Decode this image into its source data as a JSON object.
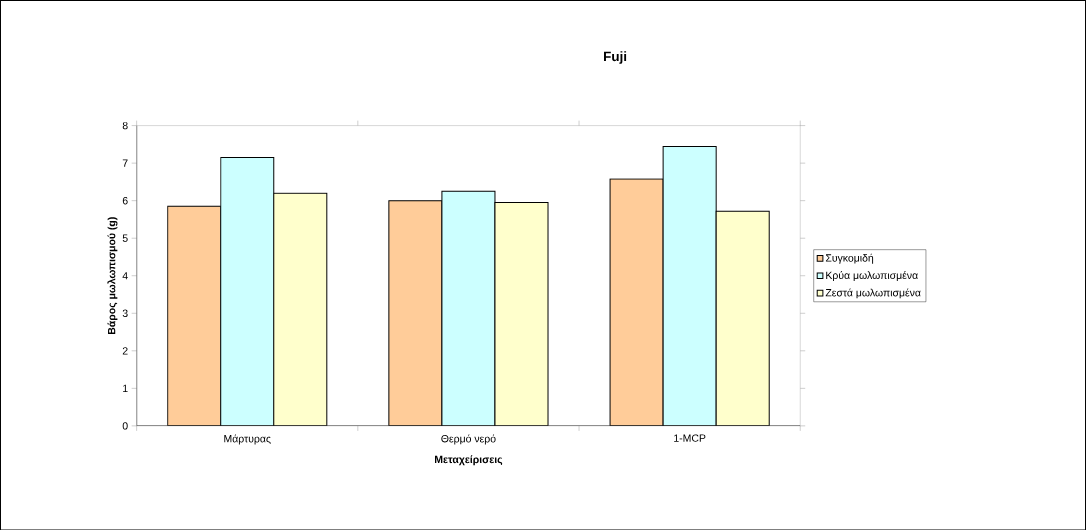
{
  "chart_data": {
    "type": "bar",
    "title": "Fuji",
    "xlabel": "Μεταχείρισεις",
    "ylabel": "Βάρος μωλωπισμού (g)",
    "categories": [
      "Μάρτυρας",
      "Θερμό νερό",
      "1-MCP"
    ],
    "series": [
      {
        "name": "Συγκομιδή",
        "color": "#ffcc99",
        "values": [
          5.85,
          6.0,
          6.58
        ]
      },
      {
        "name": "Κρύα μωλωπισμένα",
        "color": "#ccffff",
        "values": [
          7.15,
          6.25,
          7.44
        ]
      },
      {
        "name": "Ζεστά μωλωπισμένα",
        "color": "#ffffcc",
        "values": [
          6.2,
          5.95,
          5.72
        ]
      }
    ],
    "ylim": [
      0,
      8
    ],
    "yticks": [
      0,
      1,
      2,
      3,
      4,
      5,
      6,
      7,
      8
    ],
    "grid": false,
    "legend": "right"
  }
}
